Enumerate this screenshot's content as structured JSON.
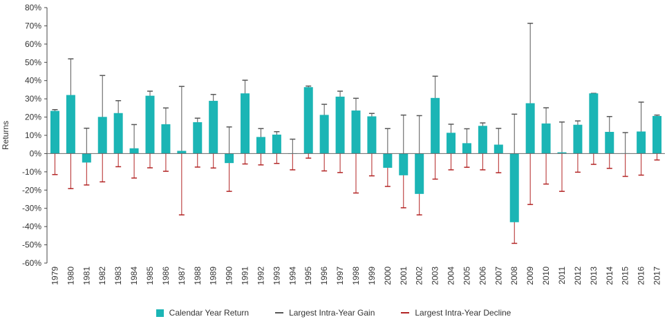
{
  "chart_data": {
    "type": "bar",
    "title": "",
    "xlabel": "",
    "ylabel": "Returns",
    "ylim": [
      -0.6,
      0.8
    ],
    "yticks": [
      "80%",
      "70%",
      "60%",
      "50%",
      "40%",
      "30%",
      "20%",
      "10%",
      "0%",
      "-10%",
      "-20%",
      "-30%",
      "-40%",
      "-50%",
      "-60%"
    ],
    "categories": [
      "1979",
      "1980",
      "1981",
      "1982",
      "1983",
      "1984",
      "1985",
      "1986",
      "1987",
      "1988",
      "1989",
      "1990",
      "1991",
      "1992",
      "1993",
      "1994",
      "1995",
      "1996",
      "1997",
      "1998",
      "1999",
      "2000",
      "2001",
      "2002",
      "2003",
      "2004",
      "2005",
      "2006",
      "2007",
      "2008",
      "2009",
      "2010",
      "2011",
      "2012",
      "2013",
      "2014",
      "2015",
      "2016",
      "2017"
    ],
    "series": [
      {
        "name": "Calendar Year Return",
        "color": "#1bb5b5",
        "values": [
          0.234,
          0.321,
          -0.049,
          0.201,
          0.222,
          0.029,
          0.317,
          0.161,
          0.015,
          0.172,
          0.289,
          -0.052,
          0.33,
          0.091,
          0.104,
          0.0,
          0.364,
          0.212,
          0.312,
          0.236,
          0.204,
          -0.078,
          -0.119,
          -0.221,
          0.305,
          0.114,
          0.057,
          0.152,
          0.049,
          -0.376,
          0.276,
          0.165,
          0.007,
          0.158,
          0.33,
          0.119,
          0.002,
          0.121,
          0.206
        ]
      },
      {
        "name": "Largest Intra-Year Gain",
        "color": "#555555",
        "values": [
          0.241,
          0.519,
          0.139,
          0.428,
          0.29,
          0.159,
          0.342,
          0.25,
          0.368,
          0.194,
          0.324,
          0.146,
          0.402,
          0.137,
          0.12,
          0.079,
          0.37,
          0.27,
          0.342,
          0.303,
          0.22,
          0.137,
          0.211,
          0.208,
          0.424,
          0.161,
          0.136,
          0.168,
          0.138,
          0.216,
          0.714,
          0.251,
          0.173,
          0.179,
          0.33,
          0.203,
          0.115,
          0.282,
          0.211
        ]
      },
      {
        "name": "Largest Intra-Year Decline",
        "color": "#b22222",
        "values": [
          -0.115,
          -0.192,
          -0.172,
          -0.155,
          -0.072,
          -0.134,
          -0.078,
          -0.097,
          -0.336,
          -0.074,
          -0.079,
          -0.207,
          -0.057,
          -0.062,
          -0.054,
          -0.089,
          -0.025,
          -0.095,
          -0.104,
          -0.216,
          -0.122,
          -0.18,
          -0.297,
          -0.336,
          -0.14,
          -0.089,
          -0.075,
          -0.089,
          -0.105,
          -0.492,
          -0.279,
          -0.167,
          -0.207,
          -0.102,
          -0.059,
          -0.081,
          -0.125,
          -0.118,
          -0.035
        ]
      }
    ],
    "legend_placement": "bottom",
    "grid": false
  }
}
